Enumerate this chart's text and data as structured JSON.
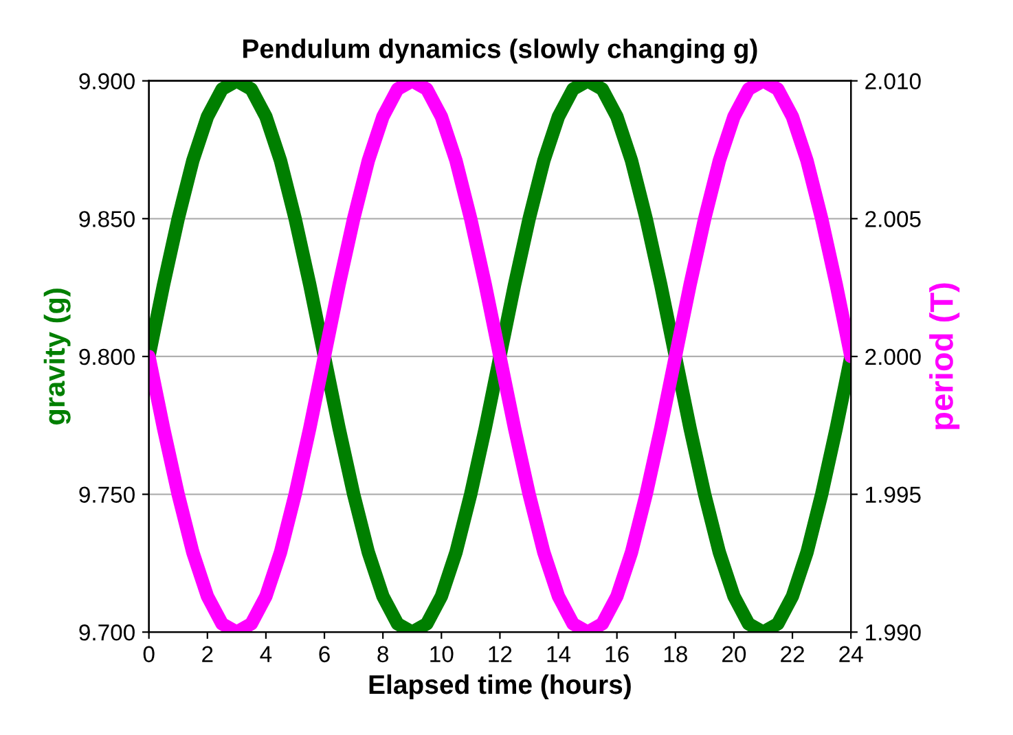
{
  "chart_data": {
    "type": "line",
    "title": "Pendulum dynamics (slowly changing g)",
    "xlabel": "Elapsed time (hours)",
    "ylabel": "gravity (g)",
    "y2label": "period (T)",
    "x": [
      0,
      0.5,
      1,
      1.5,
      2,
      2.5,
      3,
      3.5,
      4,
      4.5,
      5,
      5.5,
      6,
      6.5,
      7,
      7.5,
      8,
      8.5,
      9,
      9.5,
      10,
      10.5,
      11,
      11.5,
      12,
      12.5,
      13,
      13.5,
      14,
      14.5,
      15,
      15.5,
      16,
      16.5,
      17,
      17.5,
      18,
      18.5,
      19,
      19.5,
      20,
      20.5,
      21,
      21.5,
      22,
      22.5,
      23,
      23.5,
      24
    ],
    "series": [
      {
        "color": "#007f00",
        "values": [
          9.8,
          9.826,
          9.85,
          9.871,
          9.887,
          9.897,
          9.9,
          9.897,
          9.887,
          9.871,
          9.85,
          9.826,
          9.8,
          9.774,
          9.75,
          9.729,
          9.713,
          9.703,
          9.7,
          9.703,
          9.713,
          9.729,
          9.75,
          9.774,
          9.8,
          9.826,
          9.85,
          9.871,
          9.887,
          9.897,
          9.9,
          9.897,
          9.887,
          9.871,
          9.85,
          9.826,
          9.8,
          9.774,
          9.75,
          9.729,
          9.713,
          9.703,
          9.7,
          9.703,
          9.713,
          9.729,
          9.75,
          9.774,
          9.8
        ]
      },
      {
        "color": "#ff00ff",
        "axis": "y2",
        "values": [
          2.0,
          1.9974,
          1.995,
          1.9929,
          1.9913,
          1.9903,
          1.99,
          1.9903,
          1.9913,
          1.9929,
          1.995,
          1.9974,
          2.0,
          2.0026,
          2.005,
          2.0071,
          2.0087,
          2.0097,
          2.01,
          2.0097,
          2.0087,
          2.0071,
          2.005,
          2.0026,
          2.0,
          1.9974,
          1.995,
          1.9929,
          1.9913,
          1.9903,
          1.99,
          1.9903,
          1.9913,
          1.9929,
          1.995,
          1.9974,
          2.0,
          2.0026,
          2.005,
          2.0071,
          2.0087,
          2.0097,
          2.01,
          2.0097,
          2.0087,
          2.0071,
          2.005,
          2.0026,
          2.0
        ]
      }
    ],
    "xlim": [
      0,
      24
    ],
    "xticks": [
      0,
      2,
      4,
      6,
      8,
      10,
      12,
      14,
      16,
      18,
      20,
      22,
      24
    ],
    "ylim": [
      9.7,
      9.9
    ],
    "yticks": [
      {
        "value": 9.7,
        "label": "9.700"
      },
      {
        "value": 9.75,
        "label": "9.750"
      },
      {
        "value": 9.8,
        "label": "9.800"
      },
      {
        "value": 9.85,
        "label": "9.850"
      },
      {
        "value": 9.9,
        "label": "9.900"
      }
    ],
    "y2lim": [
      1.99,
      2.01
    ],
    "y2ticks": [
      {
        "value": 1.99,
        "label": "1.990"
      },
      {
        "value": 1.995,
        "label": "1.995"
      },
      {
        "value": 2.0,
        "label": "2.000"
      },
      {
        "value": 2.005,
        "label": "2.005"
      },
      {
        "value": 2.01,
        "label": "2.010"
      }
    ],
    "grid": "y",
    "line_style": "solid"
  }
}
